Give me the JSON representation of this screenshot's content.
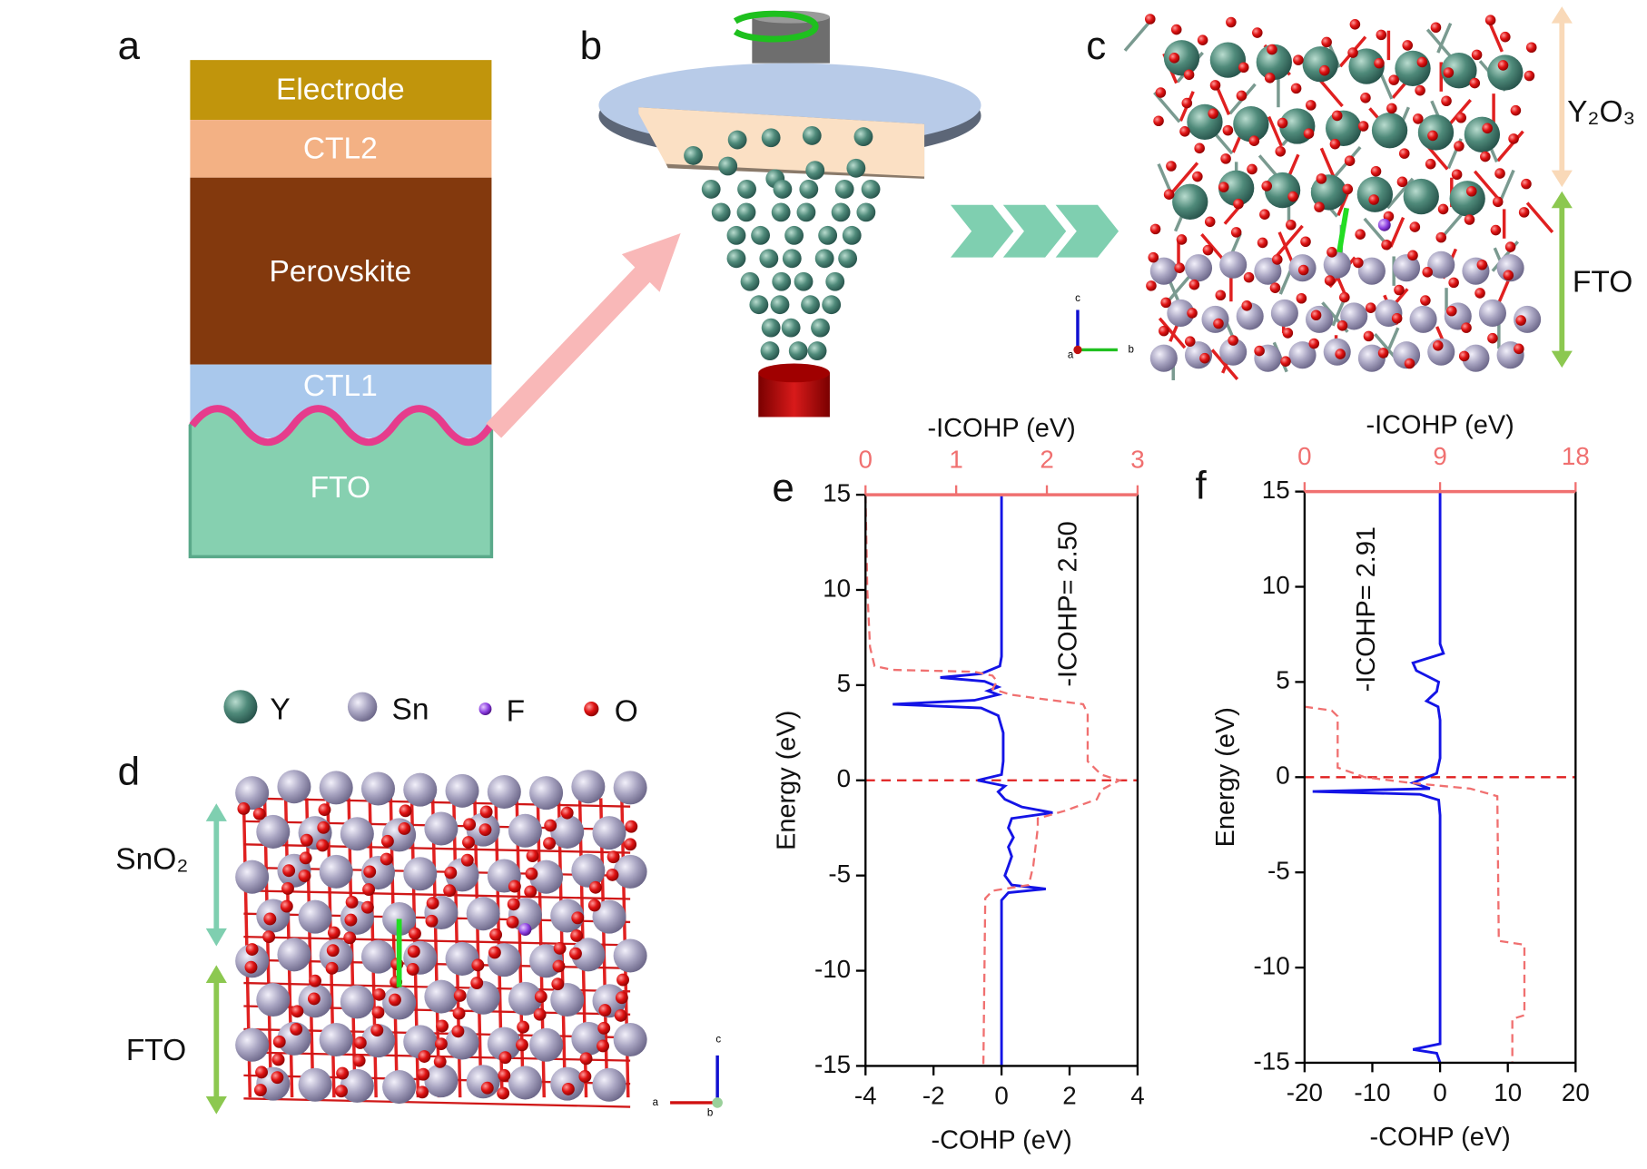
{
  "panel_labels": [
    "a",
    "b",
    "c",
    "d",
    "e",
    "f"
  ],
  "layers": [
    "Electrode",
    "CTL2",
    "Perovskite",
    "CTL1",
    "FTO"
  ],
  "structure_c": {
    "layers": [
      "Y₂O₃",
      "FTO"
    ],
    "axes": [
      "c",
      "a",
      "b"
    ]
  },
  "legend": [
    "Y",
    "Sn",
    "F",
    "O"
  ],
  "structure_d": {
    "layers": [
      "SnO₂",
      "FTO"
    ],
    "axes": [
      "c",
      "a",
      "b"
    ]
  },
  "chart_data": [
    {
      "type": "line",
      "x_label": "-COHP (eV)",
      "x2_label": "-ICOHP (eV)",
      "y_label": "Energy (eV)",
      "annotation": "-ICOHP= 2.50",
      "xlim": [
        -4,
        4
      ],
      "xticks": [
        -4,
        -2,
        0,
        2,
        4
      ],
      "x2lim": [
        0,
        3
      ],
      "x2ticks": [
        0,
        1,
        2,
        3
      ],
      "x2_color": "#f07070",
      "ylim": [
        -15,
        15
      ],
      "yticks": [
        -15,
        -10,
        -5,
        0,
        5,
        10,
        15
      ],
      "hline": 0,
      "hline_color": "#e02020",
      "series": [
        {
          "color": "#1414e6",
          "axis": "x",
          "energy": [
            15,
            6.5,
            6,
            5.6,
            5.4,
            5.2,
            4.9,
            4.7,
            4.5,
            4.2,
            4.0,
            3.8,
            3.4,
            2.5,
            1,
            0.3,
            0,
            -0.3,
            -0.6,
            -1.0,
            -1.4,
            -1.7,
            -2.0,
            -2.5,
            -3,
            -3.5,
            -4,
            -4.5,
            -5,
            -5.5,
            -5.7,
            -5.9,
            -6.3,
            -15
          ],
          "values": [
            0,
            0,
            -0.05,
            -0.6,
            -1.8,
            -0.5,
            -0.1,
            -0.4,
            -0.1,
            -0.8,
            -3.2,
            -0.6,
            -0.1,
            0.05,
            0.05,
            0,
            -0.7,
            0.1,
            -0.1,
            0.1,
            0.6,
            1.5,
            0.3,
            0.2,
            0.35,
            0.2,
            0.3,
            0.2,
            0.1,
            0.3,
            1.3,
            0.2,
            0,
            0
          ]
        },
        {
          "color": "#f07070",
          "axis": "x2",
          "dashed": true,
          "energy": [
            15,
            10,
            7,
            6,
            5.8,
            5.7,
            5.5,
            5.2,
            4.8,
            4.5,
            4.3,
            4.0,
            3.5,
            1,
            0.3,
            0,
            -0.5,
            -1.0,
            -1.6,
            -2.0,
            -2.5,
            -4.5,
            -5.5,
            -5.8,
            -6.2,
            -15
          ],
          "values": [
            0,
            0.02,
            0.05,
            0.1,
            0.3,
            1.2,
            1.4,
            1.45,
            1.4,
            1.6,
            1.9,
            2.4,
            2.45,
            2.45,
            2.6,
            2.8,
            2.6,
            2.55,
            2.2,
            1.9,
            1.9,
            1.85,
            1.8,
            1.4,
            1.32,
            1.3
          ]
        }
      ]
    },
    {
      "type": "line",
      "x_label": "-COHP (eV)",
      "x2_label": "-ICOHP (eV)",
      "y_label": "Energy (eV)",
      "annotation": "-ICOHP= 2.91",
      "xlim": [
        -20,
        20
      ],
      "xticks": [
        -20,
        -10,
        0,
        10,
        20
      ],
      "x2lim": [
        0,
        18
      ],
      "x2ticks": [
        0,
        9,
        18
      ],
      "x2_color": "#f07070",
      "ylim": [
        -15,
        15
      ],
      "yticks": [
        -15,
        -10,
        -5,
        0,
        5,
        10,
        15
      ],
      "hline": 0,
      "hline_color": "#e02020",
      "series": [
        {
          "color": "#1414e6",
          "axis": "x",
          "energy": [
            15,
            7,
            6.5,
            6,
            5.6,
            5.0,
            4.5,
            4.0,
            3.7,
            3,
            1,
            0.2,
            -0.3,
            -0.6,
            -0.75,
            -0.9,
            -1.2,
            -2,
            -14,
            -14.3,
            -14.5,
            -15
          ],
          "values": [
            0,
            0,
            0.5,
            -4,
            -3.5,
            -0.2,
            -0.5,
            -2,
            -0.3,
            0,
            0,
            -0.5,
            -4,
            -1.5,
            -18.8,
            -3,
            -0.2,
            0,
            0,
            -4,
            -0.5,
            0
          ]
        },
        {
          "color": "#f07070",
          "axis": "x2",
          "dashed": true,
          "energy": [
            3.7,
            3.5,
            3.2,
            0.5,
            0,
            -0.3,
            -0.6,
            -1,
            -8.6,
            -8.8,
            -12.5,
            -12.7,
            -15
          ],
          "values": [
            0,
            1.8,
            2.2,
            2.2,
            4,
            7,
            11,
            12.8,
            12.9,
            14.6,
            14.6,
            13.8,
            13.8
          ]
        }
      ]
    }
  ]
}
